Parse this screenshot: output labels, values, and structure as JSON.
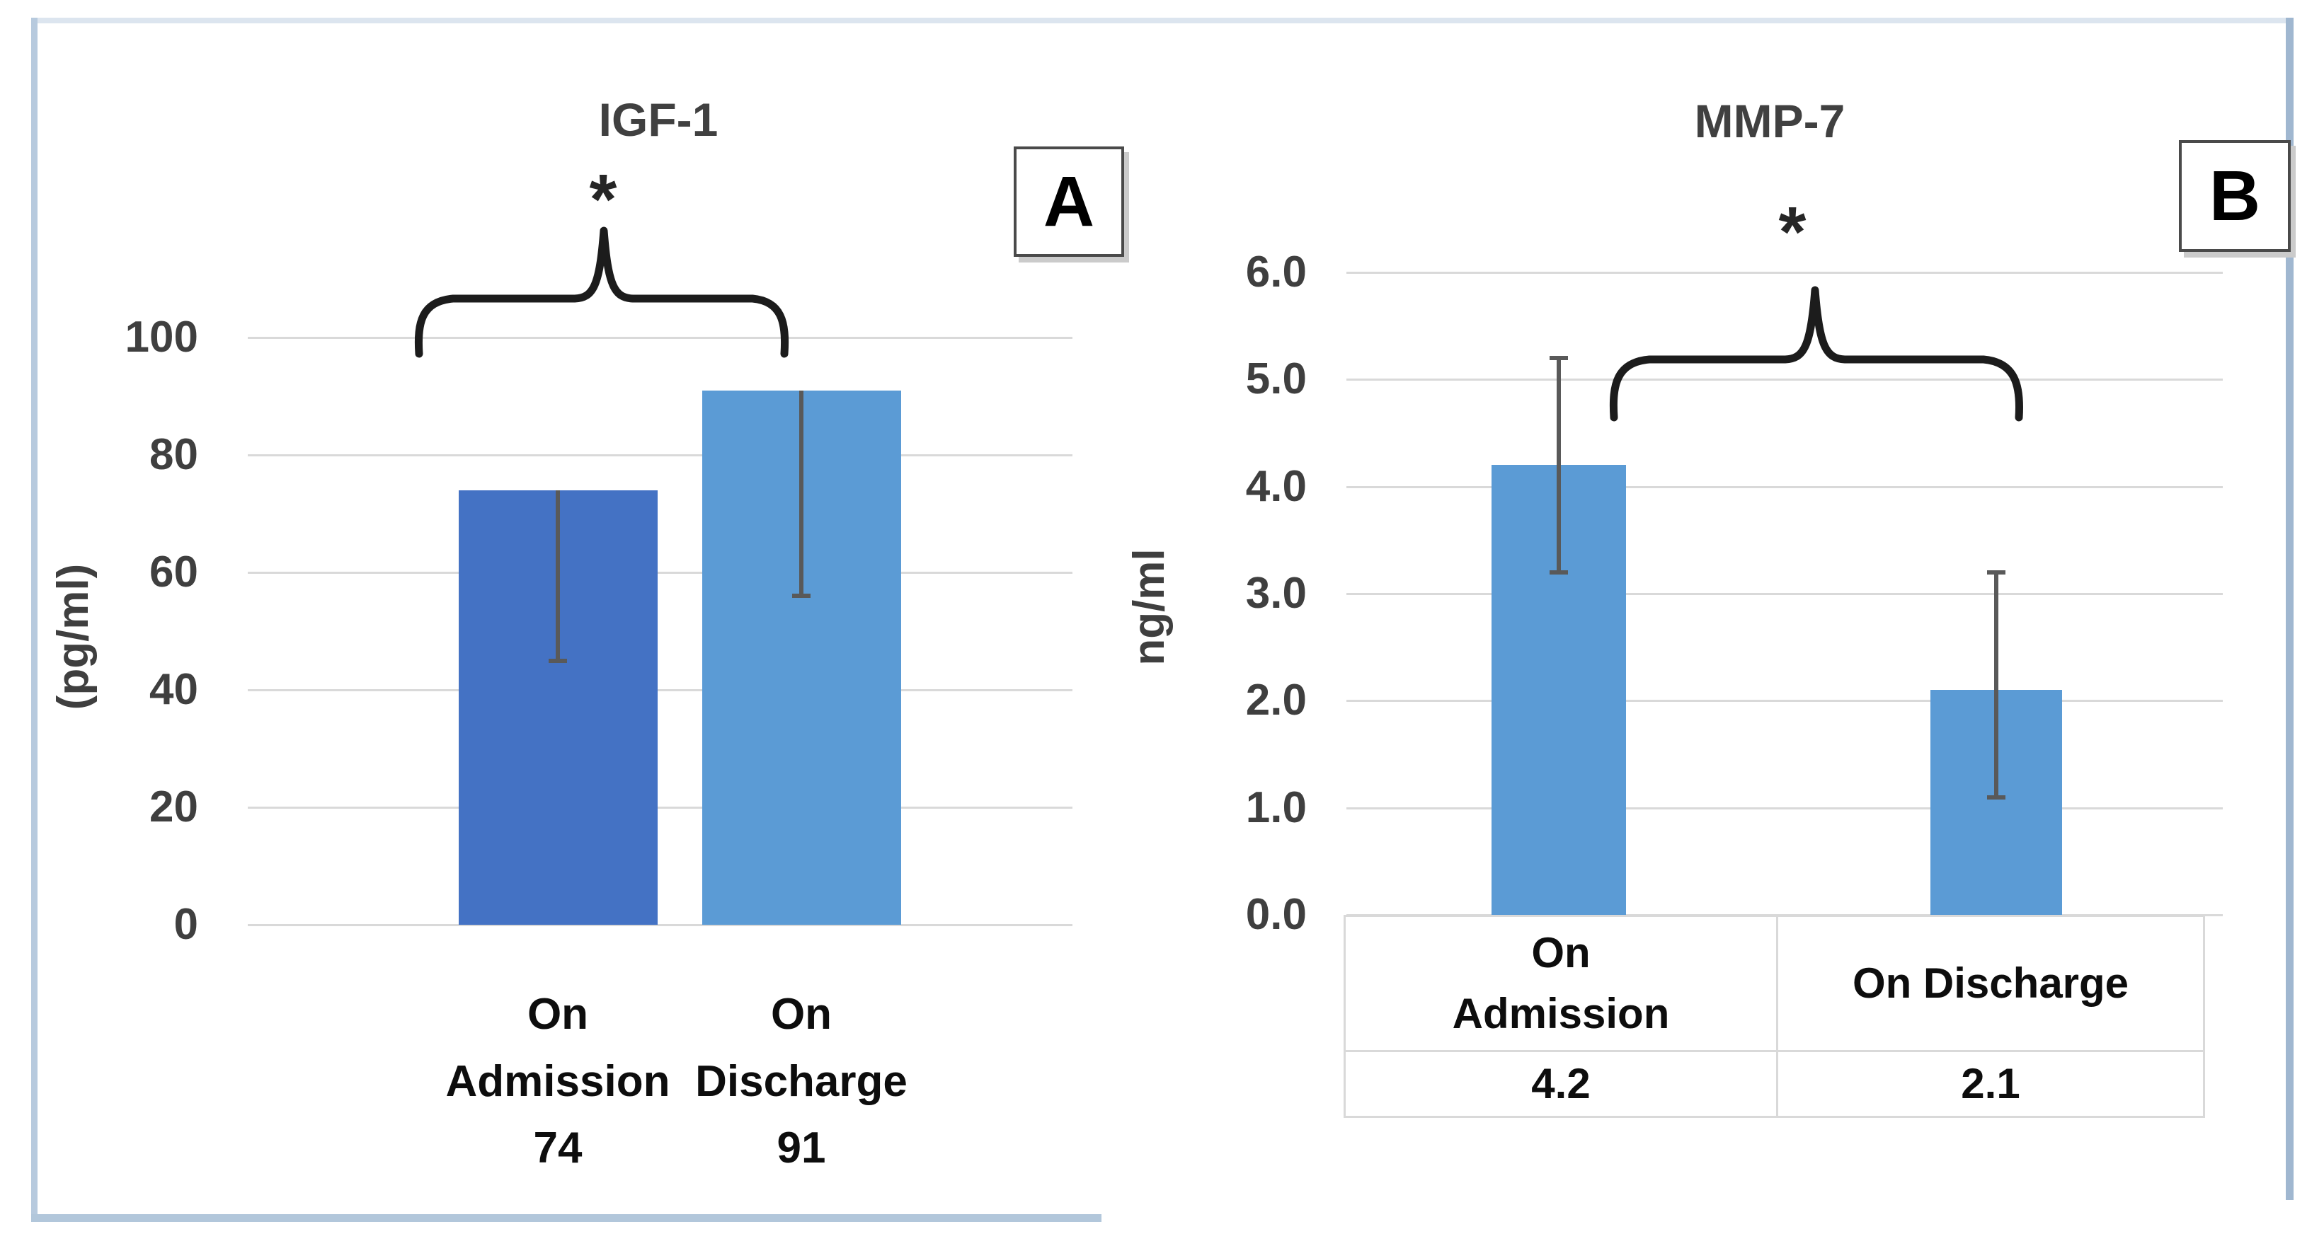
{
  "figure_type": "two-panel bar chart figure",
  "panel_labels": [
    "A",
    "B"
  ],
  "chart_data": [
    {
      "panel": "A",
      "type": "bar",
      "title": "IGF-1",
      "ylabel": "(pg/ml)",
      "xlabel": "",
      "ylim": [
        0,
        100
      ],
      "ytick_values": [
        0,
        20,
        40,
        60,
        80,
        100
      ],
      "ytick_labels": [
        "0",
        "20",
        "40",
        "60",
        "80",
        "100"
      ],
      "categories": [
        "On Admission",
        "On Discharge"
      ],
      "values": [
        74,
        91
      ],
      "value_labels": [
        "74",
        "91"
      ],
      "bar_colors": [
        "#4472c4",
        "#5b9bd5"
      ],
      "error_bars": {
        "mode": "minus",
        "lower": [
          45,
          56
        ]
      },
      "significance": {
        "marker": "*",
        "between": [
          "On Admission",
          "On Discharge"
        ]
      },
      "grid": true,
      "legend": false
    },
    {
      "panel": "B",
      "type": "bar",
      "title": "MMP-7",
      "ylabel": "ng/ml",
      "xlabel": "",
      "ylim": [
        0,
        6
      ],
      "ytick_values": [
        0,
        1,
        2,
        3,
        4,
        5,
        6
      ],
      "ytick_labels": [
        "0.0",
        "1.0",
        "2.0",
        "3.0",
        "4.0",
        "5.0",
        "6.0"
      ],
      "categories": [
        "On Admission",
        "On Discharge"
      ],
      "values": [
        4.2,
        2.1
      ],
      "bar_colors": [
        "#5b9bd5",
        "#5b9bd5"
      ],
      "error_bars": {
        "mode": "both",
        "upper": [
          5.2,
          3.2
        ],
        "lower": [
          3.2,
          1.1
        ]
      },
      "significance": {
        "marker": "*",
        "between": [
          "On Admission",
          "On Discharge"
        ]
      },
      "data_table": {
        "headers": [
          "On Admission",
          "On Discharge"
        ],
        "values": [
          "4.2",
          "2.1"
        ]
      },
      "grid": true,
      "legend": false
    }
  ],
  "colors": {
    "bar_dark_blue": "#4472c4",
    "bar_light_blue": "#5b9bd5",
    "gridline": "#d9d9d9",
    "error_bar": "#595959",
    "text_dark": "#3f3f3f",
    "category_text": "#0d0d0d",
    "figure_border": "#b7cade",
    "table_border": "#d9d9d9"
  }
}
